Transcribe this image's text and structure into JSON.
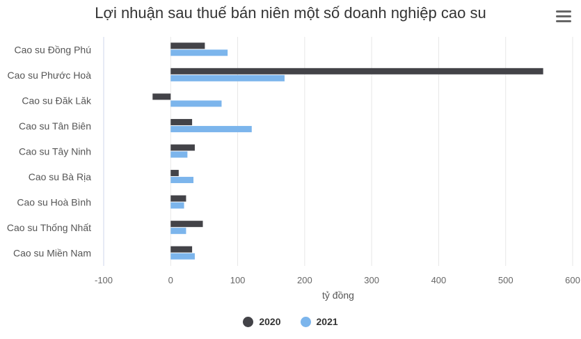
{
  "colors": {
    "s2020": "#434348",
    "s2021": "#7cb5ec",
    "grid": "#e6e6e6",
    "axis": "#ccd6eb"
  },
  "icons": {
    "menu": "hamburger-menu-icon"
  },
  "chart_data": {
    "type": "bar",
    "orientation": "horizontal",
    "title": "Lợi nhuận sau thuế bán niên một số doanh nghiệp cao su",
    "xlabel": "tỷ đồng",
    "ylabel": "",
    "xlim": [
      -100,
      600
    ],
    "xticks": [
      -100,
      0,
      100,
      200,
      300,
      400,
      500,
      600
    ],
    "grid": true,
    "legend_position": "bottom-center",
    "categories": [
      "Cao su Đồng Phú",
      "Cao su Phước Hoà",
      "Cao su Đăk Lăk",
      "Cao su Tân Biên",
      "Cao su Tây Ninh",
      "Cao su Bà Rịa",
      "Cao su Hoà Bình",
      "Cao su Thống Nhất",
      "Cao su Miền Nam"
    ],
    "series": [
      {
        "name": "2020",
        "values": [
          51,
          556,
          -27,
          32,
          36,
          12,
          23,
          48,
          32
        ]
      },
      {
        "name": "2021",
        "values": [
          85,
          170,
          76,
          121,
          25,
          34,
          20,
          23,
          36
        ]
      }
    ]
  }
}
